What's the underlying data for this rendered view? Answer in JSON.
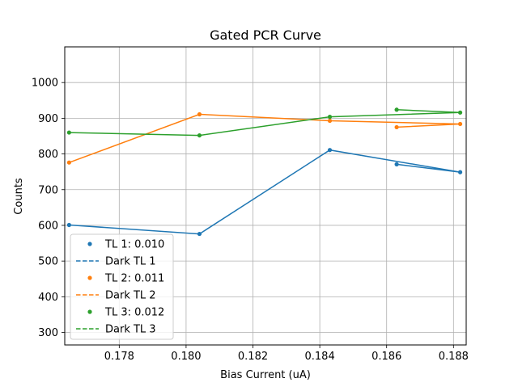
{
  "chart_data": {
    "type": "line",
    "title": "Gated PCR Curve",
    "xlabel": "Bias Current (uA)",
    "ylabel": "Counts",
    "xlim": [
      0.17637,
      0.18838
    ],
    "ylim": [
      265,
      1100
    ],
    "xticks": [
      0.178,
      0.18,
      0.182,
      0.184,
      0.186,
      0.188
    ],
    "xtick_labels": [
      "0.178",
      "0.180",
      "0.182",
      "0.184",
      "0.186",
      "0.188"
    ],
    "yticks": [
      300,
      400,
      500,
      600,
      700,
      800,
      900,
      1000
    ],
    "ytick_labels": [
      "300",
      "400",
      "500",
      "600",
      "700",
      "800",
      "900",
      "1000"
    ],
    "grid": true,
    "legend_position": "lower-left",
    "legend": [
      "TL 1: 0.010",
      "Dark TL 1",
      "TL 2: 0.011",
      "Dark TL 2",
      "TL 3: 0.012",
      "Dark TL 3"
    ],
    "series": [
      {
        "name": "TL 1: 0.010",
        "color": "#1f77b4",
        "x": [
          0.1765,
          0.1804,
          0.1843,
          0.1882,
          0.1863
        ],
        "y": [
          601,
          576,
          811,
          749,
          771
        ]
      },
      {
        "name": "TL 2: 0.011",
        "color": "#ff7f0e",
        "x": [
          0.1765,
          0.1804,
          0.1843,
          0.1882,
          0.1863
        ],
        "y": [
          776,
          911,
          893,
          884,
          875
        ]
      },
      {
        "name": "TL 3: 0.012",
        "color": "#2ca02c",
        "x": [
          0.1765,
          0.1804,
          0.1843,
          0.1882,
          0.1863
        ],
        "y": [
          860,
          852,
          904,
          916,
          924
        ]
      }
    ]
  }
}
